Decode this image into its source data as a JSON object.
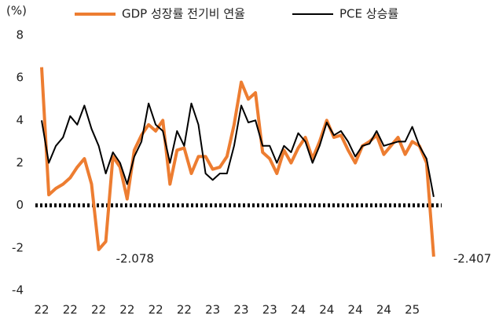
{
  "chart_data": {
    "type": "line",
    "y_label": "(%)",
    "categories": [
      "22",
      null,
      null,
      null,
      "22",
      null,
      null,
      null,
      "22",
      null,
      null,
      null,
      "22",
      null,
      null,
      null,
      "22",
      null,
      null,
      null,
      "22",
      null,
      null,
      null,
      "23",
      null,
      null,
      null,
      "23",
      null,
      null,
      null,
      "23",
      null,
      null,
      null,
      "24",
      null,
      null,
      null,
      "24",
      null,
      null,
      null,
      "24",
      null,
      null,
      null,
      "24",
      null,
      null,
      null,
      "25",
      null,
      null,
      null
    ],
    "series": [
      {
        "name": "GDP 성장률 전기비 연율",
        "color": "#ed7d31",
        "values": [
          6.5,
          0.5,
          0.8,
          1.0,
          1.3,
          1.8,
          2.2,
          1.0,
          -2.078,
          -1.7,
          2.3,
          1.8,
          0.3,
          2.6,
          3.3,
          3.8,
          3.5,
          4.0,
          1.0,
          2.6,
          2.7,
          1.5,
          2.3,
          2.3,
          1.7,
          1.8,
          2.3,
          3.8,
          5.8,
          5.0,
          5.3,
          2.5,
          2.2,
          1.5,
          2.6,
          2.0,
          2.7,
          3.2,
          2.2,
          3.0,
          4.0,
          3.2,
          3.3,
          2.6,
          2.0,
          2.8,
          3.0,
          3.3,
          2.4,
          2.8,
          3.2,
          2.4,
          3.0,
          2.8,
          2.0,
          -2.407
        ]
      },
      {
        "name": "PCE 상승률",
        "color": "#000000",
        "values": [
          4.0,
          2.0,
          2.8,
          3.2,
          4.2,
          3.8,
          4.7,
          3.6,
          2.8,
          1.5,
          2.5,
          2.0,
          1.0,
          2.3,
          3.0,
          4.8,
          3.8,
          3.5,
          2.0,
          3.5,
          2.8,
          4.8,
          3.8,
          1.5,
          1.2,
          1.5,
          1.5,
          2.8,
          4.7,
          3.9,
          4.0,
          2.8,
          2.8,
          2.0,
          2.8,
          2.5,
          3.4,
          3.0,
          2.0,
          2.8,
          3.9,
          3.3,
          3.5,
          3.0,
          2.3,
          2.8,
          2.9,
          3.5,
          2.8,
          2.9,
          3.0,
          3.0,
          3.7,
          2.8,
          2.2,
          0.4
        ]
      }
    ],
    "annotations": [
      "-2.078",
      "-2.407"
    ],
    "ylim": [
      -4,
      8
    ],
    "yticks": [
      -4,
      -2,
      0,
      2,
      4,
      6,
      8
    ],
    "grid": false
  }
}
